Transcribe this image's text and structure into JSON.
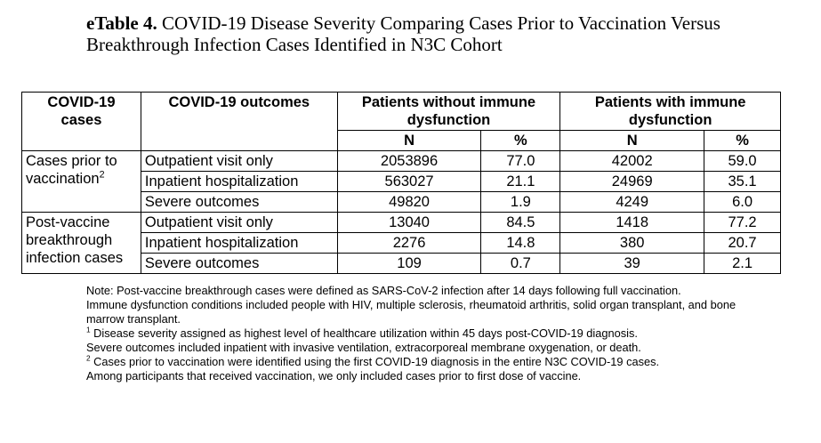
{
  "title": {
    "prefix": "eTable 4.",
    "text": " COVID-19 Disease Severity Comparing Cases Prior to Vaccination Versus Breakthrough Infection Cases Identified in N3C Cohort"
  },
  "table": {
    "headers": {
      "cases": "COVID-19 cases",
      "outcomes": "COVID-19 outcomes",
      "group_without": "Patients without immune dysfunction",
      "group_with": "Patients with immune dysfunction",
      "n": "N",
      "pct": "%"
    },
    "groups": [
      {
        "label": "Cases prior to vaccination",
        "sup": "2",
        "rows": [
          {
            "outcome": "Outpatient visit only",
            "n_without": "2053896",
            "pct_without": "77.0",
            "n_with": "42002",
            "pct_with": "59.0"
          },
          {
            "outcome": "Inpatient hospitalization",
            "n_without": "563027",
            "pct_without": "21.1",
            "n_with": "24969",
            "pct_with": "35.1"
          },
          {
            "outcome": "Severe outcomes",
            "n_without": "49820",
            "pct_without": "1.9",
            "n_with": "4249",
            "pct_with": "6.0"
          }
        ]
      },
      {
        "label": "Post-vaccine breakthrough infection cases",
        "sup": "",
        "rows": [
          {
            "outcome": "Outpatient visit only",
            "n_without": "13040",
            "pct_without": "84.5",
            "n_with": "1418",
            "pct_with": "77.2"
          },
          {
            "outcome": "Inpatient hospitalization",
            "n_without": "2276",
            "pct_without": "14.8",
            "n_with": "380",
            "pct_with": "20.7"
          },
          {
            "outcome": "Severe outcomes",
            "n_without": "109",
            "pct_without": "0.7",
            "n_with": "39",
            "pct_with": "2.1"
          }
        ]
      }
    ]
  },
  "notes": {
    "note1": "Note: Post-vaccine breakthrough cases were defined as SARS-CoV-2 infection after 14 days following full vaccination.",
    "note2": "Immune dysfunction conditions included people with HIV, multiple sclerosis, rheumatoid arthritis, solid organ transplant, and bone marrow transplant.",
    "fn1_mark": "1",
    "fn1_text": " Disease severity assigned as highest level of healthcare utilization within 45 days post-COVID-19 diagnosis.",
    "note3": "Severe outcomes included inpatient with invasive ventilation, extracorporeal membrane oxygenation, or death.",
    "fn2_mark": "2",
    "fn2_text": " Cases prior to vaccination were identified using the first COVID-19 diagnosis in the entire N3C COVID-19 cases.",
    "note4": "Among participants that received vaccination, we only included cases prior to first dose of vaccine."
  }
}
